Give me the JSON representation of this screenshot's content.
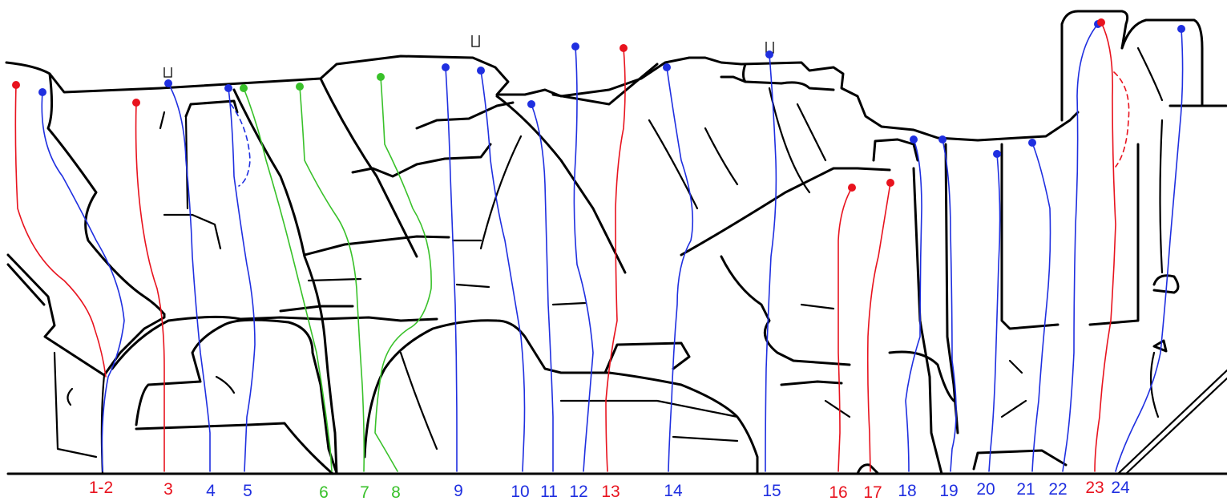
{
  "colors": {
    "rock_lines": "#000000",
    "background": "#ffffff"
  },
  "routes": [
    {
      "label": "1-2",
      "color": "#e8131e"
    },
    {
      "label": "3",
      "color": "#e8131e"
    },
    {
      "label": "4",
      "color": "#1f2fe0"
    },
    {
      "label": "5",
      "color": "#1f2fe0"
    },
    {
      "label": "6",
      "color": "#39c12a"
    },
    {
      "label": "7",
      "color": "#39c12a"
    },
    {
      "label": "8",
      "color": "#39c12a"
    },
    {
      "label": "9",
      "color": "#1f2fe0"
    },
    {
      "label": "10",
      "color": "#1f2fe0"
    },
    {
      "label": "11",
      "color": "#1f2fe0"
    },
    {
      "label": "12",
      "color": "#1f2fe0"
    },
    {
      "label": "13",
      "color": "#e8131e"
    },
    {
      "label": "14",
      "color": "#1f2fe0"
    },
    {
      "label": "15",
      "color": "#1f2fe0"
    },
    {
      "label": "16",
      "color": "#e8131e"
    },
    {
      "label": "17",
      "color": "#e8131e"
    },
    {
      "label": "18",
      "color": "#1f2fe0"
    },
    {
      "label": "19",
      "color": "#1f2fe0"
    },
    {
      "label": "20",
      "color": "#1f2fe0"
    },
    {
      "label": "21",
      "color": "#1f2fe0"
    },
    {
      "label": "22",
      "color": "#1f2fe0"
    },
    {
      "label": "23",
      "color": "#e8131e"
    },
    {
      "label": "24",
      "color": "#1f2fe0"
    }
  ]
}
